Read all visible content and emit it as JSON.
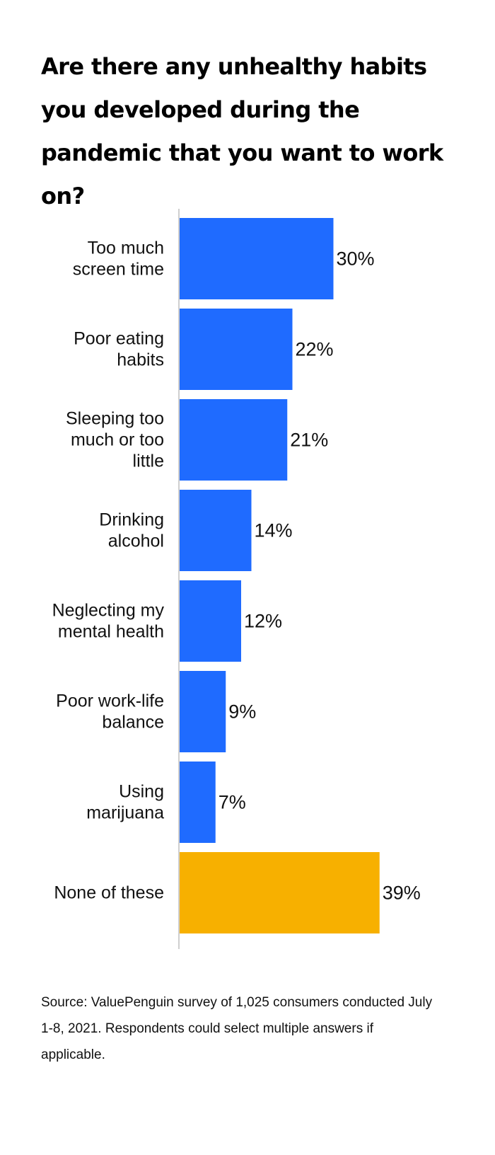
{
  "title": "Are there any unhealthy habits you developed during the pandemic that you want to work on?",
  "source": "Source: ValuePenguin survey of 1,025 consumers conducted July 1-8, 2021. Respondents could select multiple answers if applicable.",
  "colors": {
    "primary": "#1f6bff",
    "highlight": "#f7b000",
    "axis": "#bfbfbf"
  },
  "chart_data": {
    "type": "bar",
    "orientation": "horizontal",
    "title": "Are there any unhealthy habits you developed during the pandemic that you want to work on?",
    "unit": "%",
    "xlim": [
      0,
      39
    ],
    "grid": false,
    "categories": [
      [
        "Too much",
        "screen time"
      ],
      [
        "Poor eating",
        "habits"
      ],
      [
        "Sleeping too",
        "much or too",
        "little"
      ],
      [
        "Drinking",
        "alcohol"
      ],
      [
        "Neglecting my",
        "mental health"
      ],
      [
        "Poor work-life",
        "balance"
      ],
      [
        "Using",
        "marijuana"
      ],
      [
        "None of these"
      ]
    ],
    "values": [
      30,
      22,
      21,
      14,
      12,
      9,
      7,
      39
    ],
    "value_labels": [
      "30%",
      "22%",
      "21%",
      "14%",
      "12%",
      "9%",
      "7%",
      "39%"
    ],
    "highlight_index": 7
  }
}
